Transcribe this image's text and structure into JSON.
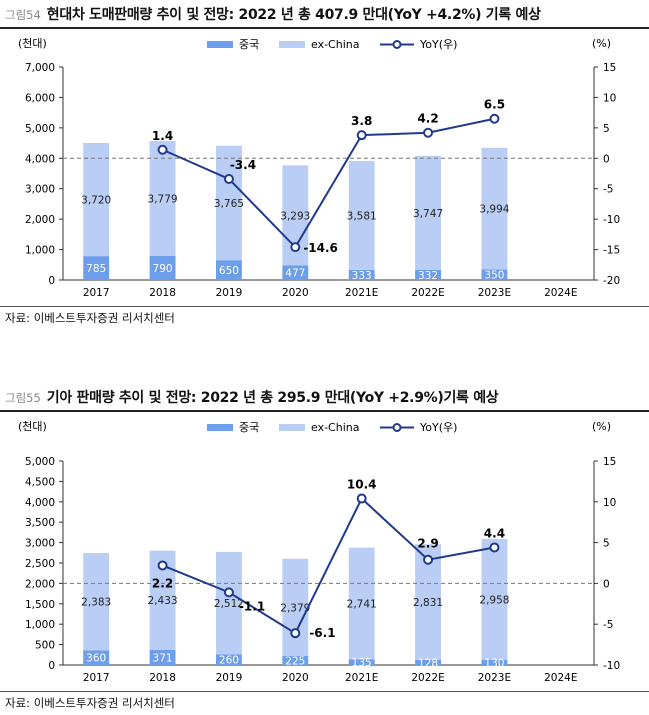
{
  "colors": {
    "china": "#6d9eeb",
    "ex_china": "#b9cdf5",
    "yoy": "#1f3a8c",
    "ref_line": "#777777"
  },
  "figures": [
    {
      "fig_num": "그림54",
      "title": "현대차 도매판매량 추이 및 전망: 2022 년 총 407.9 만대(YoY +4.2%) 기록 예상",
      "source": "자료: 이베스트투자증권 리서치센터",
      "left_unit": "(천대)",
      "right_unit": "(%)",
      "legend": [
        "중국",
        "ex-China",
        "YoY(우)"
      ]
    },
    {
      "fig_num": "그림55",
      "title": "기아 판매량 추이 및 전망: 2022 년 총 295.9 만대(YoY +2.9%)기록 예상",
      "source": "자료: 이베스트투자증권 리서치센터",
      "left_unit": "(천대)",
      "right_unit": "(%)",
      "legend": [
        "중국",
        "ex-China",
        "YoY(우)"
      ]
    }
  ],
  "chart_data": [
    {
      "type": "bar",
      "stacked": true,
      "categories": [
        "2017",
        "2018",
        "2019",
        "2020",
        "2021E",
        "2022E",
        "2023E",
        "2024E"
      ],
      "series": [
        {
          "name": "중국",
          "values": [
            785,
            790,
            650,
            477,
            333,
            332,
            350,
            null
          ]
        },
        {
          "name": "ex-China",
          "values": [
            3720,
            3779,
            3765,
            3293,
            3581,
            3747,
            3994,
            null
          ]
        },
        {
          "name": "YoY(우)",
          "type": "line",
          "axis": "right",
          "values": [
            null,
            1.4,
            -3.4,
            -14.6,
            3.8,
            4.2,
            6.5,
            null
          ]
        }
      ],
      "labels": {
        "china": [
          "785",
          "790",
          "650",
          "477",
          "333",
          "332",
          "350"
        ],
        "ex_china": [
          "3,720",
          "3,779",
          "3,765",
          "3,293",
          "3,581",
          "3,747",
          "3,994"
        ],
        "yoy": [
          "",
          "1.4",
          "-3.4",
          "-14.6",
          "3.8",
          "4.2",
          "6.5"
        ]
      },
      "ylim": [
        0,
        7000
      ],
      "yticks": [
        "0",
        "1,000",
        "2,000",
        "3,000",
        "4,000",
        "5,000",
        "6,000",
        "7,000"
      ],
      "y2lim": [
        -20,
        15
      ],
      "y2ticks": [
        "-20",
        "-15",
        "-10",
        "-5",
        "0",
        "5",
        "10",
        "15"
      ],
      "ref_line_right": 0,
      "legend_position": "top"
    },
    {
      "type": "bar",
      "stacked": true,
      "categories": [
        "2017",
        "2018",
        "2019",
        "2020",
        "2021E",
        "2022E",
        "2023E",
        "2024E"
      ],
      "series": [
        {
          "name": "중국",
          "values": [
            360,
            371,
            260,
            225,
            135,
            128,
            130,
            null
          ]
        },
        {
          "name": "ex-China",
          "values": [
            2383,
            2433,
            2512,
            2379,
            2741,
            2831,
            2958,
            null
          ]
        },
        {
          "name": "YoY(우)",
          "type": "line",
          "axis": "right",
          "values": [
            null,
            2.2,
            -1.1,
            -6.1,
            10.4,
            2.9,
            4.4,
            null
          ]
        }
      ],
      "labels": {
        "china": [
          "360",
          "371",
          "260",
          "225",
          "135",
          "128",
          "130"
        ],
        "ex_china": [
          "2,383",
          "2,433",
          "2,512",
          "2,379",
          "2,741",
          "2,831",
          "2,958"
        ],
        "yoy": [
          "",
          "2.2",
          "-1.1",
          "-6.1",
          "10.4",
          "2.9",
          "4.4"
        ]
      },
      "ylim": [
        0,
        5000
      ],
      "yticks": [
        "0",
        "500",
        "1,000",
        "1,500",
        "2,000",
        "2,500",
        "3,000",
        "3,500",
        "4,000",
        "4,500",
        "5,000"
      ],
      "y2lim": [
        -10,
        15
      ],
      "y2ticks": [
        "-10",
        "-5",
        "0",
        "5",
        "10",
        "15"
      ],
      "ref_line_right": 0,
      "legend_position": "top"
    }
  ]
}
